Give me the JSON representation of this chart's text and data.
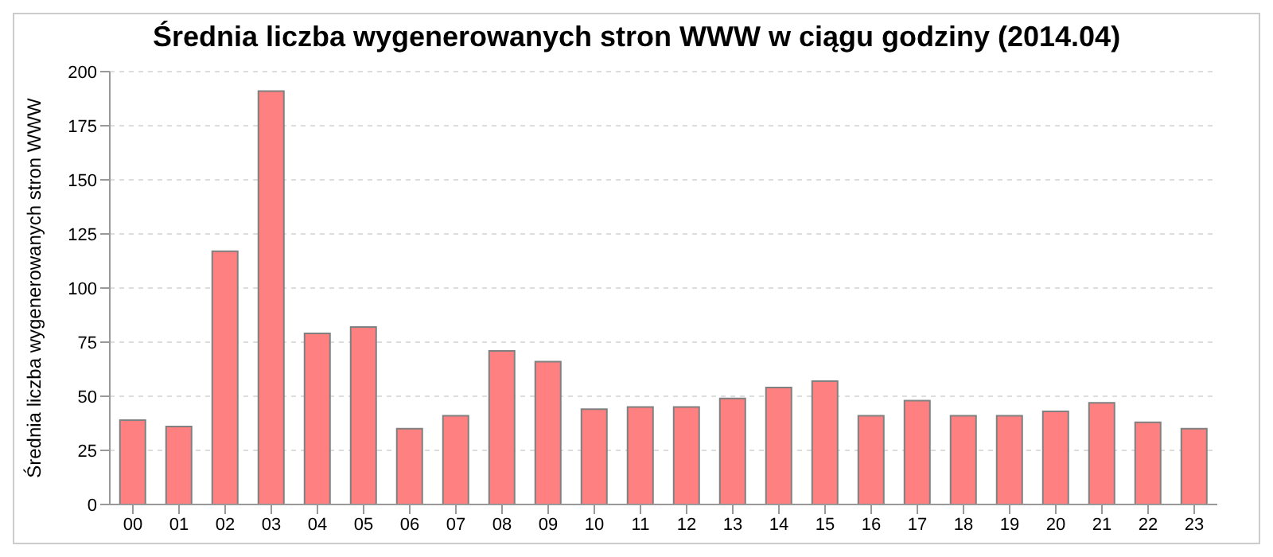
{
  "chart_data": {
    "type": "bar",
    "title": "Średnia liczba wygenerowanych stron WWW w ciągu godziny (2014.04)",
    "ylabel": "Średnia liczba wygenerowanych stron WWW",
    "categories": [
      "00",
      "01",
      "02",
      "03",
      "04",
      "05",
      "06",
      "07",
      "08",
      "09",
      "10",
      "11",
      "12",
      "13",
      "14",
      "15",
      "16",
      "17",
      "18",
      "19",
      "20",
      "21",
      "22",
      "23"
    ],
    "values": [
      39,
      36,
      117,
      191,
      79,
      82,
      35,
      41,
      71,
      66,
      44,
      45,
      45,
      49,
      54,
      57,
      41,
      48,
      41,
      41,
      43,
      47,
      38,
      35
    ],
    "color": "#ff8080",
    "ylim": [
      0,
      200
    ],
    "yticks": [
      0,
      25,
      50,
      75,
      100,
      125,
      150,
      175,
      200
    ],
    "grid": "y"
  }
}
